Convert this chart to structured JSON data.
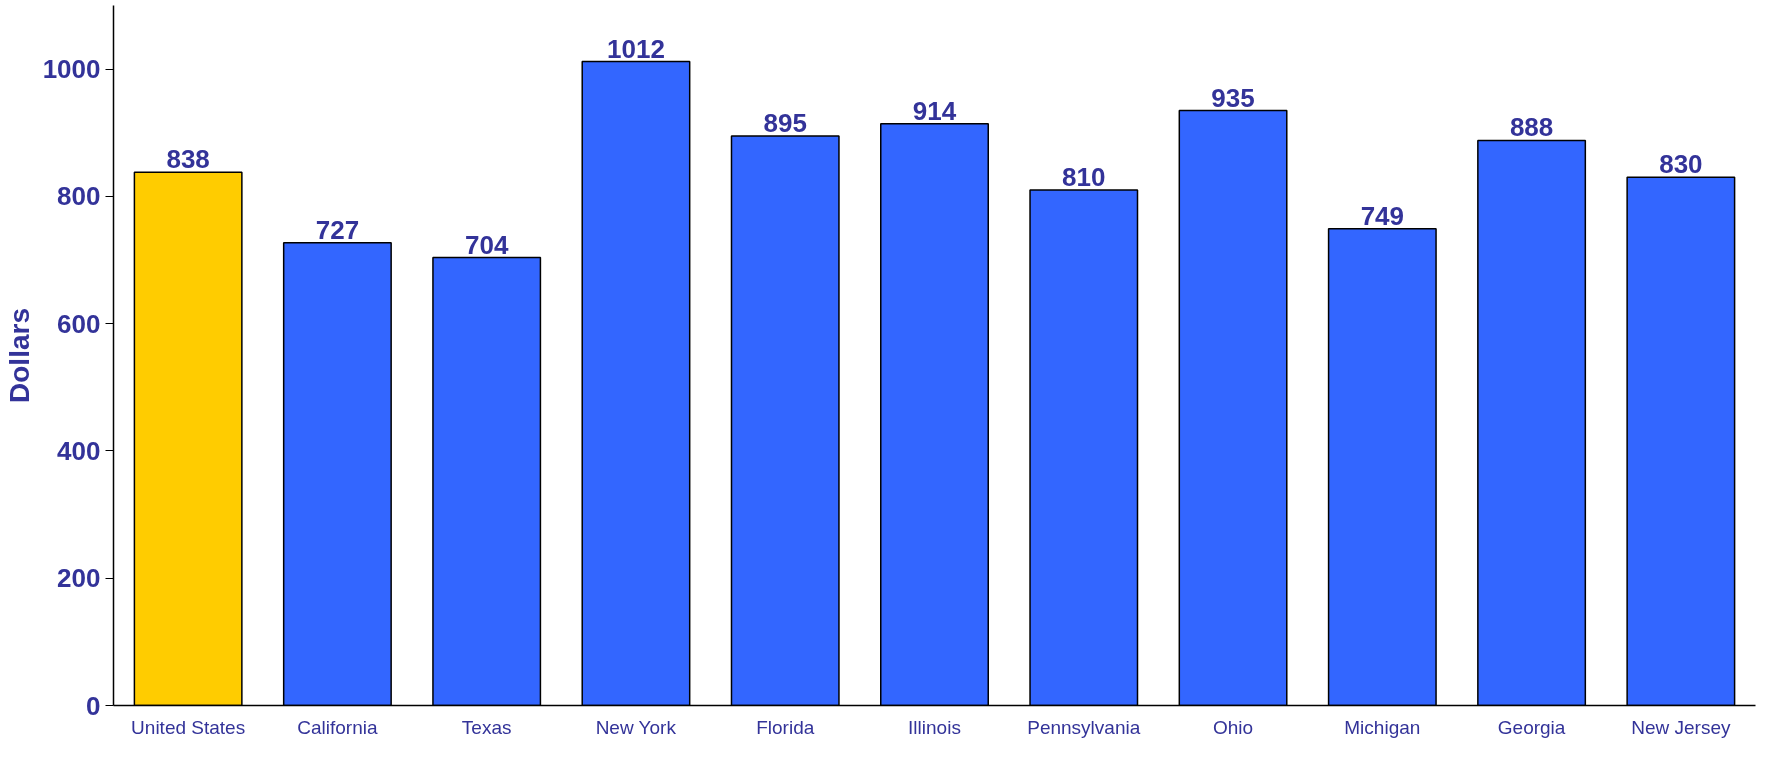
{
  "chart_data": {
    "type": "bar",
    "ylabel": "Dollars",
    "categories": [
      "United States",
      "California",
      "Texas",
      "New York",
      "Florida",
      "Illinois",
      "Pennsylvania",
      "Ohio",
      "Michigan",
      "Georgia",
      "New Jersey"
    ],
    "values": [
      838,
      727,
      704,
      1012,
      895,
      914,
      810,
      935,
      749,
      888,
      830
    ],
    "colors": [
      "#ffcc00",
      "#3366ff",
      "#3366ff",
      "#3366ff",
      "#3366ff",
      "#3366ff",
      "#3366ff",
      "#3366ff",
      "#3366ff",
      "#3366ff",
      "#3366ff"
    ],
    "ylim": [
      0,
      1100
    ],
    "yticks": [
      0,
      200,
      400,
      600,
      800,
      1000
    ],
    "data_labels": true,
    "grid": false
  }
}
